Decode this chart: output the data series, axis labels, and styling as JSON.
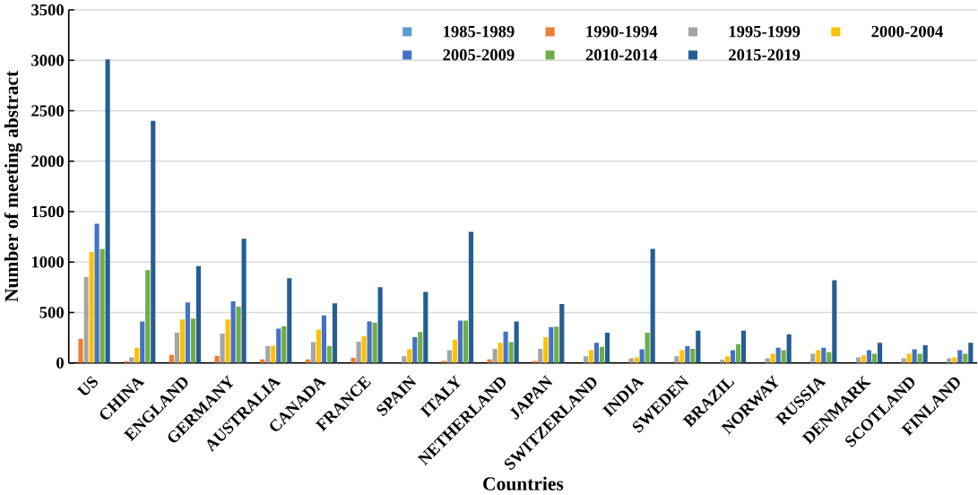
{
  "chart_data": {
    "type": "bar",
    "xlabel": "Countries",
    "ylabel": "Number of meeting abstract",
    "categories": [
      "US",
      "CHINA",
      "ENGLAND",
      "GERMANY",
      "AUSTRALIA",
      "CANADA",
      "FRANCE",
      "SPAIN",
      "ITALY",
      "NETHERLAND",
      "JAPAN",
      "SWITZERLAND",
      "INDIA",
      "SWEDEN",
      "BRAZIL",
      "NORWAY",
      "RUSSIA",
      "DENMARK",
      "SCOTLAND",
      "FINLAND"
    ],
    "series": [
      {
        "name": "1985-1989",
        "color": "#5b9bd5",
        "values": [
          0,
          0,
          0,
          0,
          0,
          0,
          0,
          0,
          0,
          0,
          0,
          0,
          0,
          0,
          0,
          0,
          0,
          0,
          0,
          0
        ]
      },
      {
        "name": "1990-1994",
        "color": "#ed7d31",
        "values": [
          240,
          15,
          80,
          70,
          35,
          35,
          50,
          0,
          20,
          35,
          20,
          null,
          null,
          null,
          0,
          0,
          0,
          0,
          0,
          0
        ]
      },
      {
        "name": "1995-1999",
        "color": "#a5a5a5",
        "values": [
          850,
          55,
          300,
          290,
          165,
          205,
          210,
          65,
          125,
          140,
          140,
          65,
          45,
          65,
          30,
          45,
          90,
          55,
          45,
          45
        ]
      },
      {
        "name": "2000-2004",
        "color": "#ffc000",
        "values": [
          1100,
          150,
          430,
          430,
          170,
          330,
          265,
          135,
          230,
          200,
          255,
          125,
          55,
          125,
          65,
          90,
          125,
          75,
          90,
          55
        ]
      },
      {
        "name": "2005-2009",
        "color": "#4472c4",
        "values": [
          1380,
          410,
          600,
          610,
          340,
          470,
          410,
          255,
          420,
          310,
          355,
          200,
          135,
          165,
          125,
          150,
          150,
          125,
          135,
          125
        ]
      },
      {
        "name": "2010-2014",
        "color": "#70ad47",
        "values": [
          1130,
          920,
          440,
          560,
          365,
          165,
          400,
          305,
          420,
          205,
          360,
          160,
          300,
          140,
          185,
          125,
          105,
          90,
          90,
          90
        ]
      },
      {
        "name": "2015-2019",
        "color": "#255e91",
        "values": [
          3010,
          2400,
          960,
          1230,
          840,
          590,
          750,
          705,
          1300,
          410,
          585,
          300,
          1130,
          320,
          320,
          285,
          820,
          200,
          175,
          200
        ]
      }
    ],
    "ylim": [
      0,
      3500
    ],
    "yticks": [
      0,
      500,
      1000,
      1500,
      2000,
      2500,
      3000,
      3500
    ],
    "grid": "y",
    "legend": "top right"
  }
}
